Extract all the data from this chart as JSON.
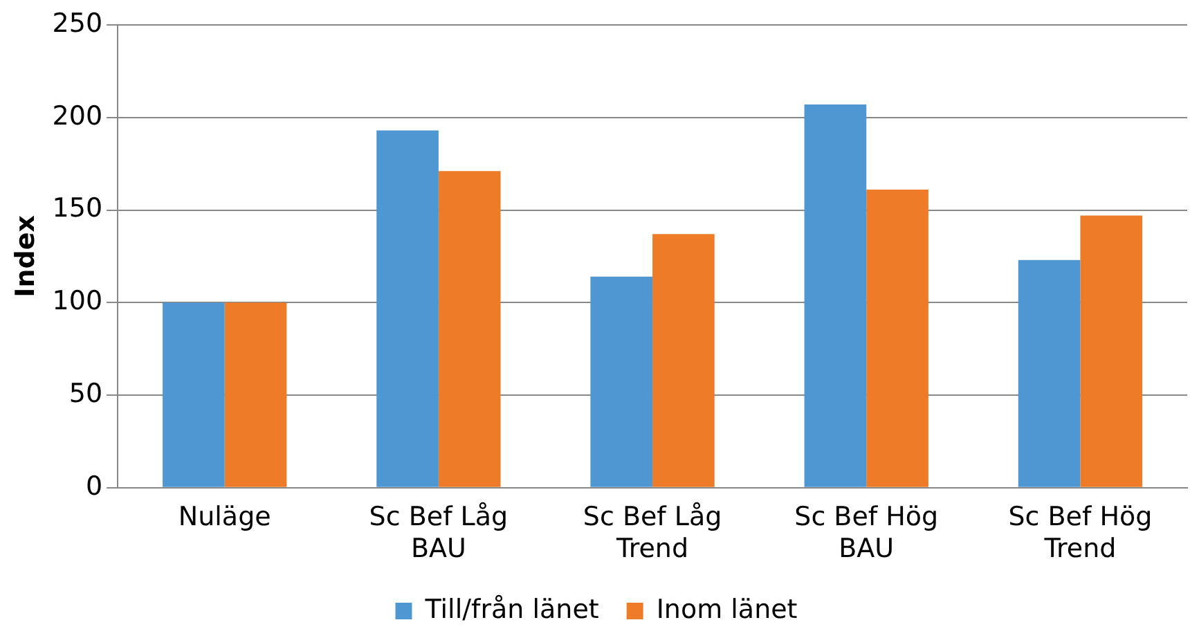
{
  "chart_data": {
    "type": "bar",
    "ylabel": "Index",
    "categories": [
      "Nuläge",
      "Sc Bef Låg BAU",
      "Sc Bef Låg Trend",
      "Sc Bef Hög BAU",
      "Sc Bef Hög Trend"
    ],
    "series": [
      {
        "name": "Till/från länet",
        "color": "#4f97d3",
        "values": [
          100,
          193,
          114,
          207,
          123
        ]
      },
      {
        "name": "Inom länet",
        "color": "#ee7b27",
        "values": [
          100,
          171,
          137,
          161,
          147
        ]
      }
    ],
    "ylim": [
      0,
      250
    ],
    "yticks": [
      0,
      50,
      100,
      150,
      200,
      250
    ],
    "grid": "y",
    "legend": "bottom"
  }
}
